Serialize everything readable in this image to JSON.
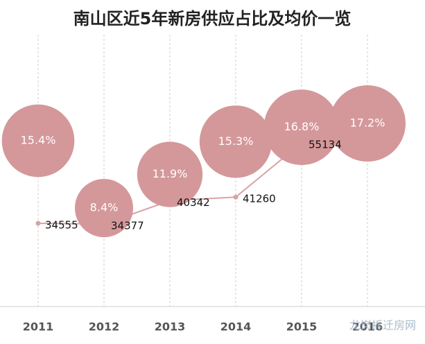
{
  "chart_data": {
    "type": "bubble_line",
    "title": "南山区近5年新房供应占比及均价一览",
    "categories": [
      "2011",
      "2012",
      "2013",
      "2014",
      "2015",
      "2016"
    ],
    "series": [
      {
        "color": "#d4989a",
        "values": [
          15.4,
          8.4,
          11.9,
          15.3,
          16.8,
          17.2
        ],
        "value_labels": [
          "15.4%",
          "8.4%",
          "11.9%",
          "15.3%",
          "16.8%",
          "17.2%"
        ]
      },
      {
        "color": "#d9a2a4",
        "values": [
          34555,
          34377,
          40342,
          41260,
          55134,
          null
        ]
      }
    ],
    "watermark": "龙岗拆迁房网"
  }
}
